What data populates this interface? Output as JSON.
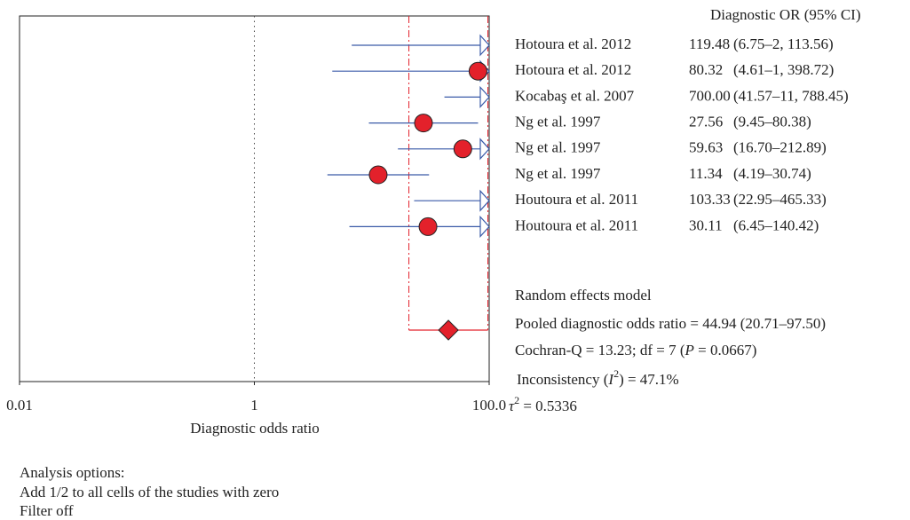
{
  "chart_data": {
    "type": "forest",
    "log_x": true,
    "header": "Diagnostic OR (95% CI)",
    "x_label": "Diagnostic odds ratio",
    "xlim": [
      0.01,
      100
    ],
    "xticks": [
      0.01,
      1,
      {
        "value": 100,
        "label": "100.0"
      }
    ],
    "reference_line": 1,
    "categories": [
      "Hotoura et al. 2012",
      "Hotoura et al. 2012",
      "Kocabaş et al. 2007",
      "Ng et al. 1997",
      "Ng et al. 1997",
      "Ng et al. 1997",
      "Houtoura et al. 2011",
      "Houtoura et al. 2011"
    ],
    "values": [
      119.48,
      80.32,
      700.0,
      27.56,
      59.63,
      11.34,
      103.33,
      30.11
    ],
    "value_labels": [
      "119.48",
      "80.32",
      "700.00",
      "27.56",
      "59.63",
      "11.34",
      "103.33",
      "30.11"
    ],
    "ci_lower": [
      6.75,
      4.61,
      41.57,
      9.45,
      16.7,
      4.19,
      22.95,
      6.45
    ],
    "ci_upper": [
      2113.56,
      1398.72,
      11788.45,
      80.38,
      212.89,
      30.74,
      465.33,
      140.42
    ],
    "ci_labels": [
      "(6.75–2, 113.56)",
      "(4.61–1, 398.72)",
      "(41.57–11, 788.45)",
      "(9.45–80.38)",
      "(16.70–212.89)",
      "(4.19–30.74)",
      "(22.95–465.33)",
      "(6.45–140.42)"
    ],
    "line_color": "#3a5aa8",
    "point_color": "#e3212b",
    "pooled_color": "#e3212b",
    "model": "Random effects model",
    "pooled": {
      "label": "Pooled diagnostic odds ratio = 44.94 (20.71–97.50)",
      "value": 44.94,
      "lower": 20.71,
      "upper": 97.5
    },
    "cochran": [
      "Cochran-Q = 13.23; df = 7 (",
      "P",
      " = 0.0667)"
    ],
    "inconsistency": [
      "Inconsistency (",
      "I",
      "2",
      ") = 47.1%"
    ],
    "tau": [
      "τ",
      "2",
      " = 0.5336"
    ],
    "analysis_options": [
      "Analysis options:",
      "Add 1/2 to all cells of the studies with zero",
      "Filter off"
    ]
  }
}
